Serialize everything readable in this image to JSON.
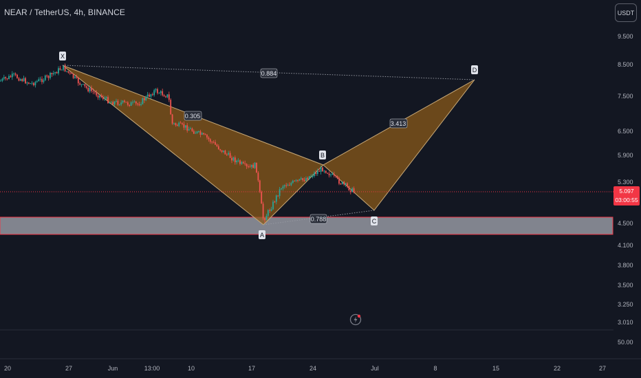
{
  "header": {
    "symbol_title": "NEAR / TetherUS, 4h, BINANCE",
    "currency_button": "USDT"
  },
  "price_axis": {
    "ticks": [
      "9.500",
      "8.500",
      "7.500",
      "6.500",
      "5.900",
      "5.300",
      "4.500",
      "4.100",
      "3.800",
      "3.500",
      "3.250",
      "3.010"
    ]
  },
  "volume_axis": {
    "ticks": [
      "50.00"
    ]
  },
  "time_axis": {
    "ticks": [
      "20",
      "27",
      "Jun",
      "13:00",
      "10",
      "17",
      "24",
      "Jul",
      "8",
      "15",
      "22",
      "27"
    ]
  },
  "current_price": {
    "value": "5.097",
    "countdown": "03:00:55",
    "line_color": "#f23645"
  },
  "harmonic_pattern": {
    "points": [
      "X",
      "A",
      "B",
      "C",
      "D"
    ],
    "ratios": {
      "xd": "0.884",
      "xab": "0.305",
      "bcd": "3.413",
      "abc": "0.788"
    },
    "fill_color": "#8a5a19",
    "line_color": "#c8a978"
  },
  "zone": {
    "fill_color": "#9598a1",
    "border_color": "#f23645"
  },
  "colors": {
    "background": "#131722",
    "up_candle": "#26a69a",
    "down_candle": "#ef5350"
  },
  "icons": {
    "logo": "lightning-bolt-icon"
  }
}
